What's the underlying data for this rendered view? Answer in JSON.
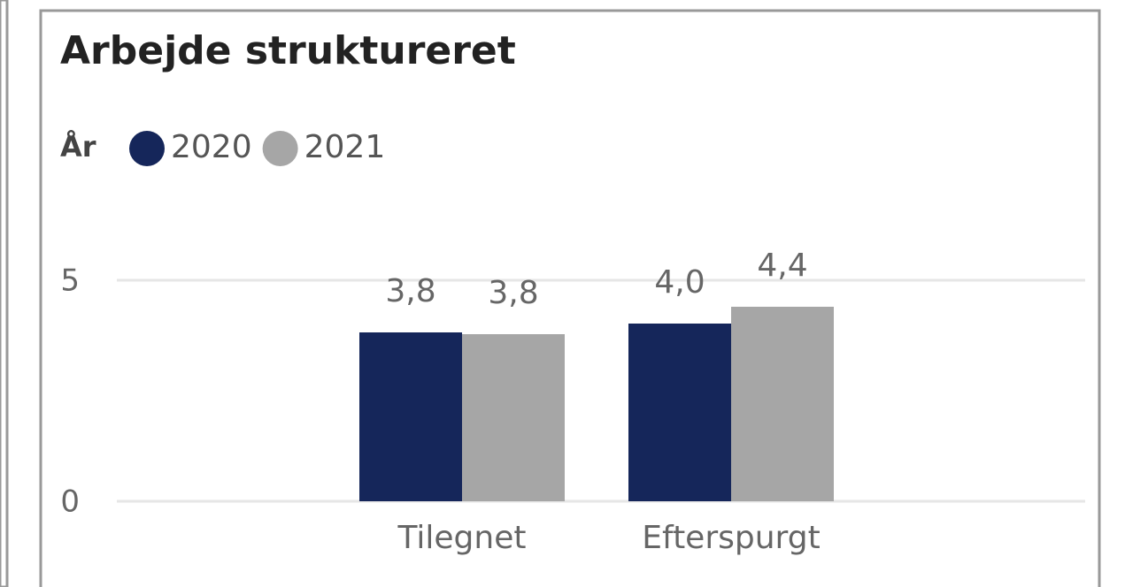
{
  "chart_data": {
    "type": "bar",
    "title": "Arbejde struktureret",
    "legend_title": "År",
    "categories": [
      "Tilegnet",
      "Efterspurgt"
    ],
    "series": [
      {
        "name": "2020",
        "color": "#15265a",
        "values": [
          3.82,
          4.02
        ],
        "value_labels": [
          "3,8",
          "4,0"
        ]
      },
      {
        "name": "2021",
        "color": "#a6a6a6",
        "values": [
          3.78,
          4.4
        ],
        "value_labels": [
          "3,8",
          "4,4"
        ]
      }
    ],
    "ylim": [
      0,
      5.5
    ],
    "yticks": [
      0,
      5
    ],
    "grid": true,
    "legend": "top-left"
  }
}
